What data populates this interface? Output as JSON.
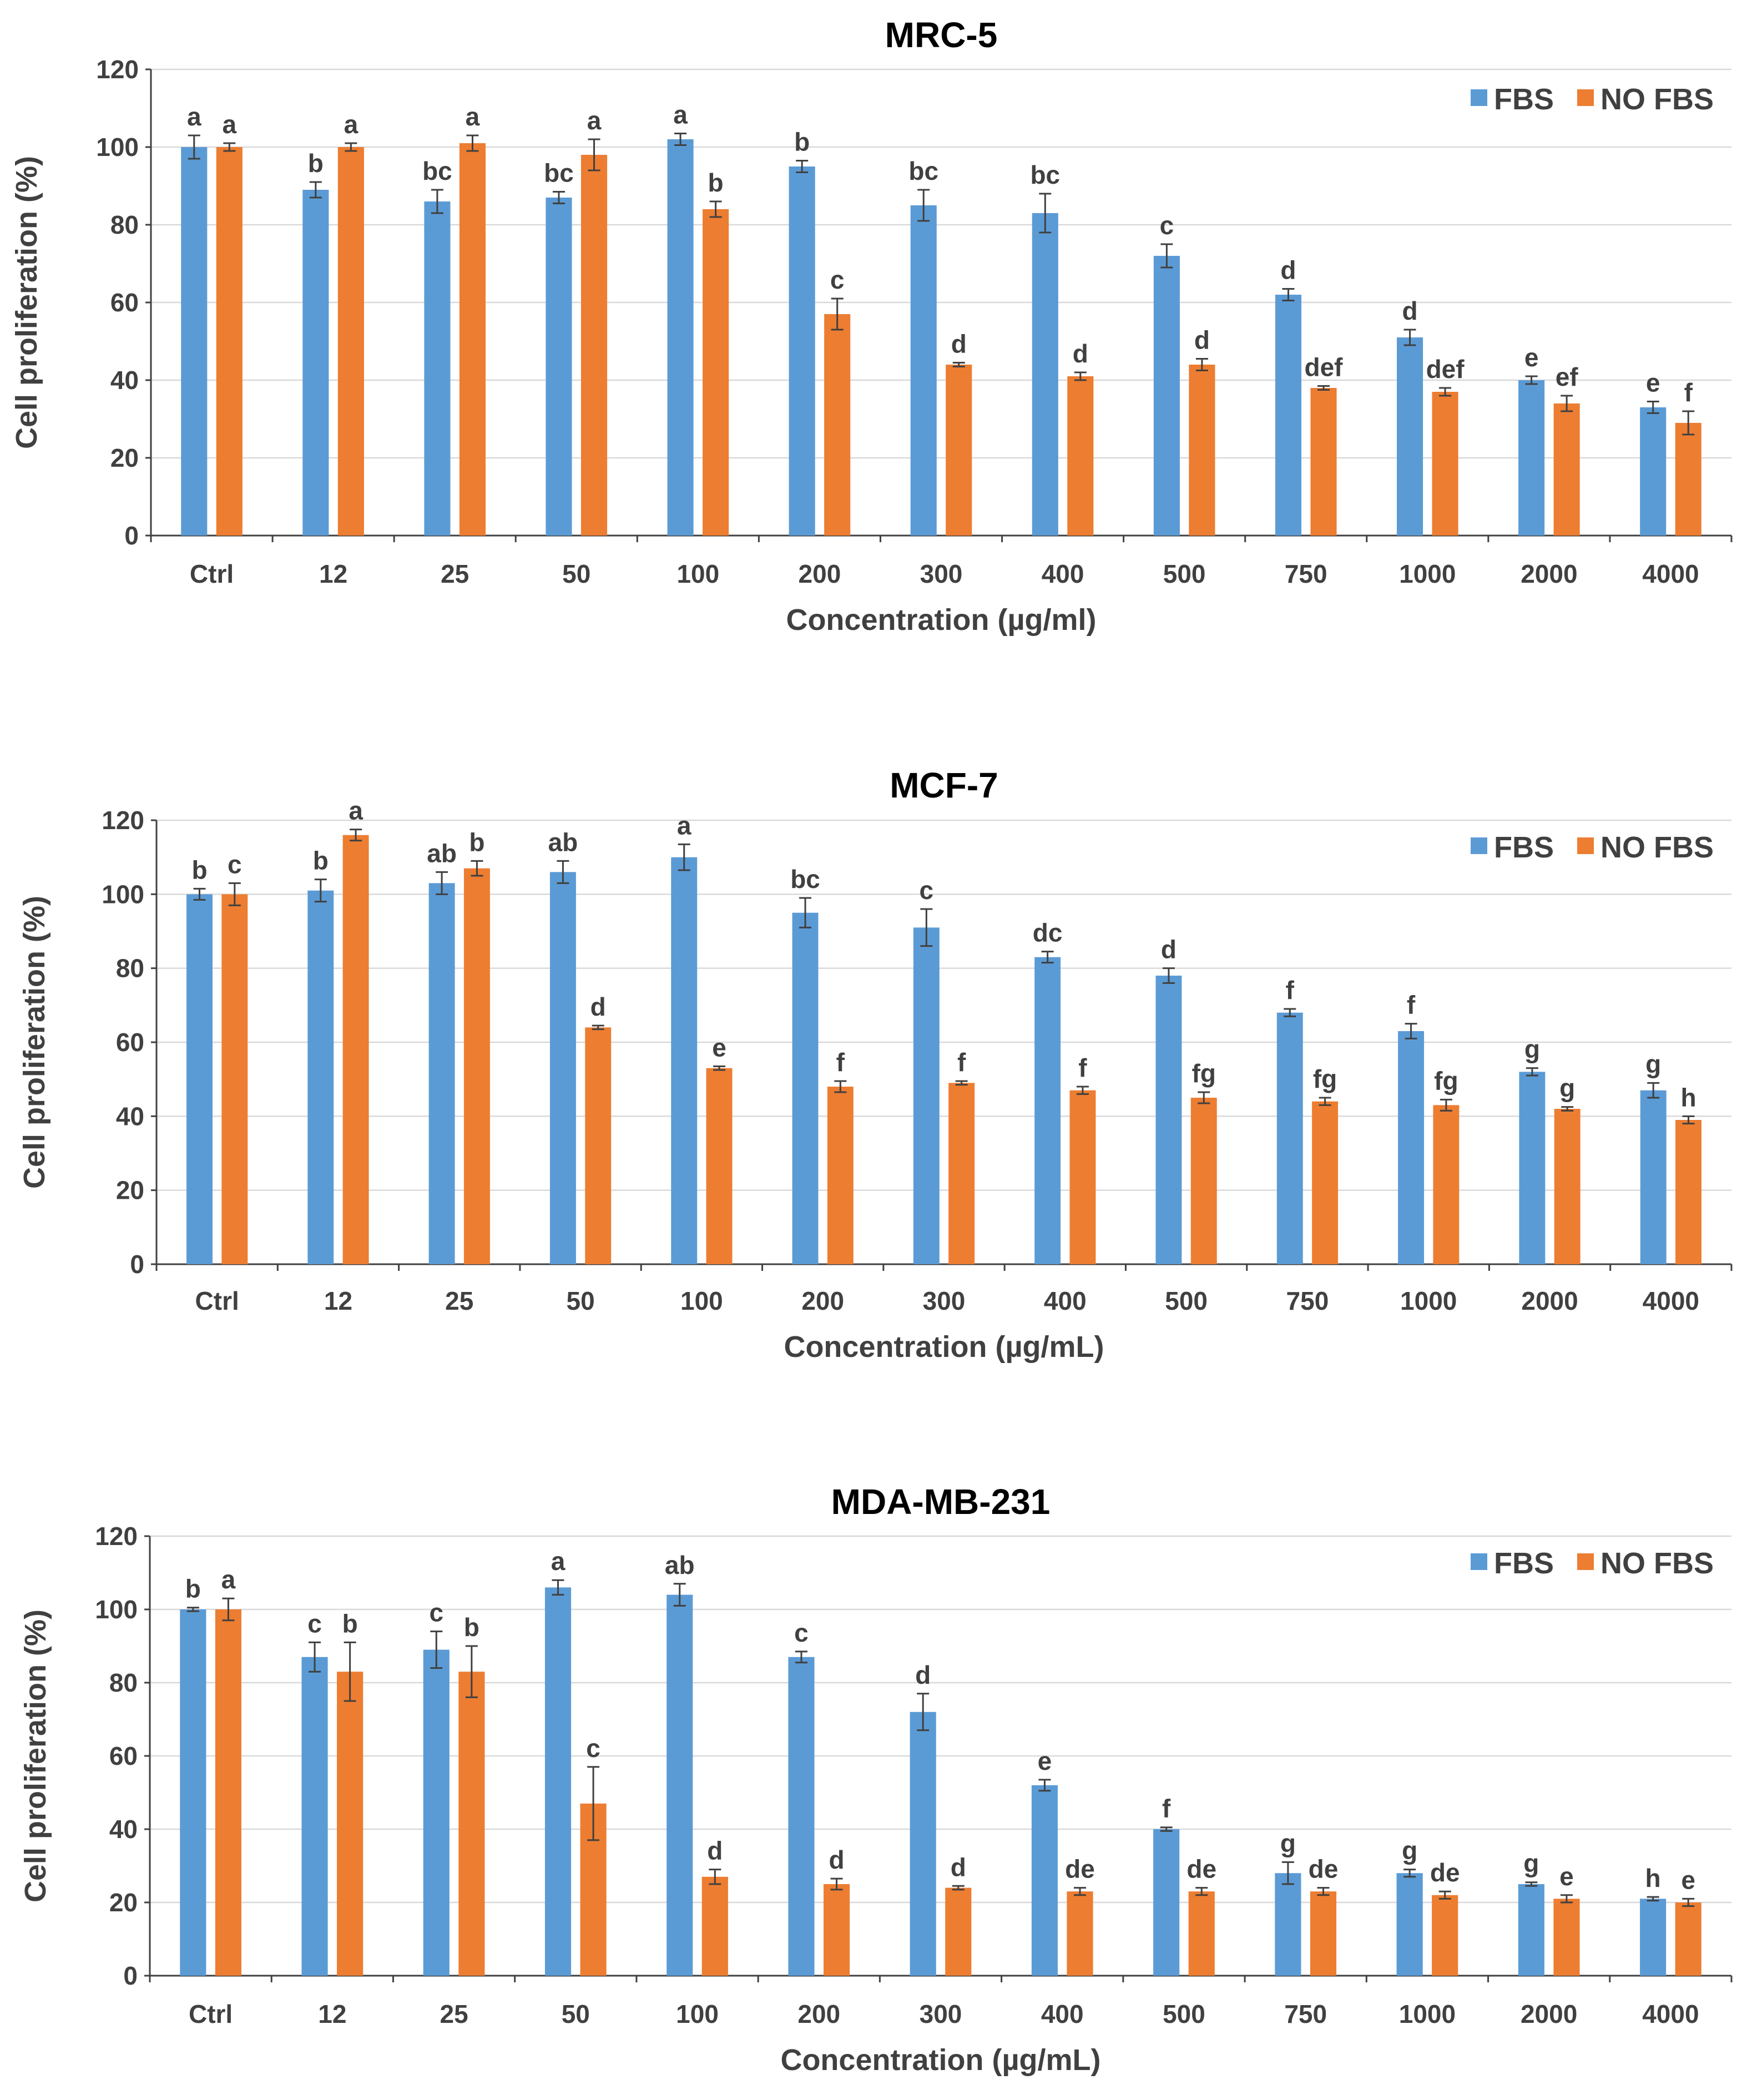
{
  "chart_data": [
    {
      "type": "bar",
      "title": "MRC-5",
      "xlabel": "Concentration (µg/ml)",
      "ylabel": "Cell proliferation (%)",
      "ylim": [
        0,
        120
      ],
      "yticks": [
        0,
        20,
        40,
        60,
        80,
        100,
        120
      ],
      "grid": true,
      "legend_position": "top-right",
      "categories": [
        "Ctrl",
        "12",
        "25",
        "50",
        "100",
        "200",
        "300",
        "400",
        "500",
        "750",
        "1000",
        "2000",
        "4000"
      ],
      "series": [
        {
          "name": "FBS",
          "color": "#5b9bd5",
          "values": [
            100,
            89,
            86,
            87,
            102,
            95,
            85,
            83,
            72,
            62,
            51,
            40,
            33
          ],
          "errors": [
            3,
            2,
            3,
            1.5,
            1.5,
            1.5,
            4,
            5,
            3,
            1.5,
            2,
            1,
            1.5
          ],
          "labels": [
            "a",
            "b",
            "bc",
            "bc",
            "a",
            "b",
            "bc",
            "bc",
            "c",
            "d",
            "d",
            "e",
            "e"
          ]
        },
        {
          "name": "NO FBS",
          "color": "#ed7d31",
          "values": [
            100,
            100,
            101,
            98,
            84,
            57,
            44,
            41,
            44,
            38,
            37,
            34,
            29
          ],
          "errors": [
            1,
            1,
            2,
            4,
            2,
            4,
            0.5,
            1,
            1.5,
            0.5,
            1,
            2,
            3
          ],
          "labels": [
            "a",
            "a",
            "a",
            "a",
            "b",
            "c",
            "d",
            "d",
            "d",
            "def",
            "def",
            "ef",
            "f"
          ]
        }
      ]
    },
    {
      "type": "bar",
      "title": "MCF-7",
      "xlabel": "Concentration (µg/mL)",
      "ylabel": "Cell proliferation (%)",
      "ylim": [
        0,
        120
      ],
      "yticks": [
        0,
        20,
        40,
        60,
        80,
        100,
        120
      ],
      "grid": true,
      "legend_position": "top-right",
      "categories": [
        "Ctrl",
        "12",
        "25",
        "50",
        "100",
        "200",
        "300",
        "400",
        "500",
        "750",
        "1000",
        "2000",
        "4000"
      ],
      "series": [
        {
          "name": "FBS",
          "color": "#5b9bd5",
          "values": [
            100,
            101,
            103,
            106,
            110,
            95,
            91,
            83,
            78,
            68,
            63,
            52,
            47
          ],
          "errors": [
            1.5,
            3,
            3,
            3,
            3.5,
            4,
            5,
            1.5,
            2,
            1,
            2,
            1,
            2
          ],
          "labels": [
            "b",
            "b",
            "ab",
            "ab",
            "a",
            "bc",
            "c",
            "dc",
            "d",
            "f",
            "f",
            "g",
            "g"
          ]
        },
        {
          "name": "NO FBS",
          "color": "#ed7d31",
          "values": [
            100,
            116,
            107,
            64,
            53,
            48,
            49,
            47,
            45,
            44,
            43,
            42,
            39
          ],
          "errors": [
            3,
            1.5,
            2,
            0.5,
            0.5,
            1.5,
            0.5,
            1,
            1.5,
            1,
            1.5,
            0.5,
            1
          ],
          "labels": [
            "c",
            "a",
            "b",
            "d",
            "e",
            "f",
            "f",
            "f",
            "fg",
            "fg",
            "fg",
            "g",
            "h"
          ]
        }
      ]
    },
    {
      "type": "bar",
      "title": "MDA-MB-231",
      "xlabel": "Concentration (µg/mL)",
      "ylabel": "Cell proliferation (%)",
      "ylim": [
        0,
        120
      ],
      "yticks": [
        0,
        20,
        40,
        60,
        80,
        100,
        120
      ],
      "grid": true,
      "legend_position": "top-right",
      "categories": [
        "Ctrl",
        "12",
        "25",
        "50",
        "100",
        "200",
        "300",
        "400",
        "500",
        "750",
        "1000",
        "2000",
        "4000"
      ],
      "series": [
        {
          "name": "FBS",
          "color": "#5b9bd5",
          "values": [
            100,
            87,
            89,
            106,
            104,
            87,
            72,
            52,
            40,
            28,
            28,
            25,
            21
          ],
          "errors": [
            0.5,
            4,
            5,
            2,
            3,
            1.5,
            5,
            1.5,
            0.5,
            3,
            1,
            0.5,
            0.5
          ],
          "labels": [
            "b",
            "c",
            "c",
            "a",
            "ab",
            "c",
            "d",
            "e",
            "f",
            "g",
            "g",
            "g",
            "h"
          ]
        },
        {
          "name": "NO FBS",
          "color": "#ed7d31",
          "values": [
            100,
            83,
            83,
            47,
            27,
            25,
            24,
            23,
            23,
            23,
            22,
            21,
            20
          ],
          "errors": [
            3,
            8,
            7,
            10,
            2,
            1.5,
            0.5,
            1,
            1,
            1,
            1,
            1,
            1
          ],
          "labels": [
            "a",
            "b",
            "b",
            "c",
            "d",
            "d",
            "d",
            "de",
            "de",
            "de",
            "de",
            "e",
            "e"
          ]
        }
      ]
    }
  ]
}
